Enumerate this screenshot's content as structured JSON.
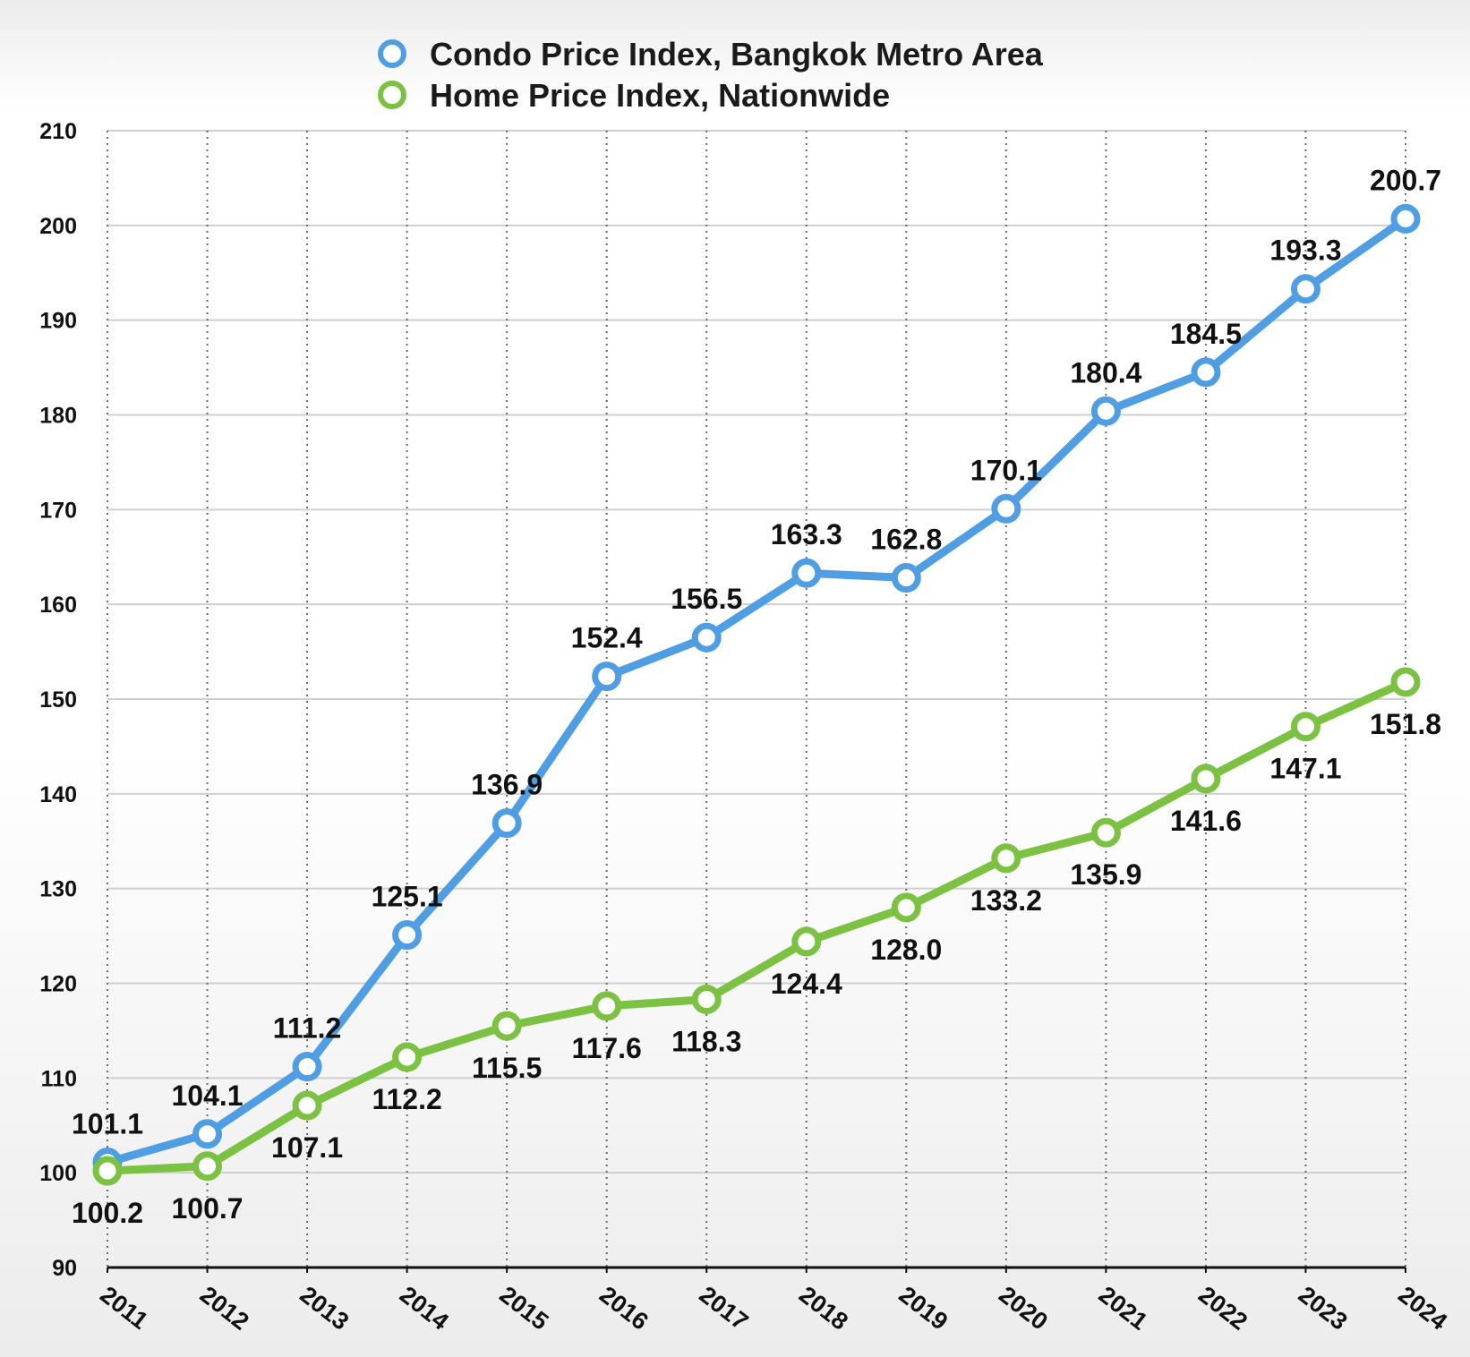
{
  "chart_data": {
    "type": "line",
    "categories": [
      "2011",
      "2012",
      "2013",
      "2014",
      "2015",
      "2016",
      "2017",
      "2018",
      "2019",
      "2020",
      "2021",
      "2022",
      "2023",
      "2024"
    ],
    "series": [
      {
        "name": "Condo Price Index, Bangkok Metro Area",
        "color": "#4f9de2",
        "values": [
          101.1,
          104.1,
          111.2,
          125.1,
          136.9,
          152.4,
          156.5,
          163.3,
          162.8,
          170.1,
          180.4,
          184.5,
          193.3,
          200.7
        ],
        "labels": [
          "101.1",
          "104.1",
          "111.2",
          "125.1",
          "136.9",
          "152.4",
          "156.5",
          "163.3",
          "162.8",
          "170.1",
          "180.4",
          "184.5",
          "193.3",
          "200.7"
        ],
        "label_position": "above"
      },
      {
        "name": "Home Price Index, Nationwide",
        "color": "#7cc242",
        "values": [
          100.2,
          100.7,
          107.1,
          112.2,
          115.5,
          117.6,
          118.3,
          124.4,
          128.0,
          133.2,
          135.9,
          141.6,
          147.1,
          151.8
        ],
        "labels": [
          "100.2",
          "100.7",
          "107.1",
          "112.2",
          "115.5",
          "117.6",
          "118.3",
          "124.4",
          "128.0",
          "133.2",
          "135.9",
          "141.6",
          "147.1",
          "151.8"
        ],
        "label_position": "below"
      }
    ],
    "ylim": [
      90,
      210
    ],
    "yticks": [
      "90",
      "100",
      "110",
      "120",
      "130",
      "140",
      "150",
      "160",
      "170",
      "180",
      "190",
      "200",
      "210"
    ],
    "grid": true,
    "legend_position": "top"
  }
}
